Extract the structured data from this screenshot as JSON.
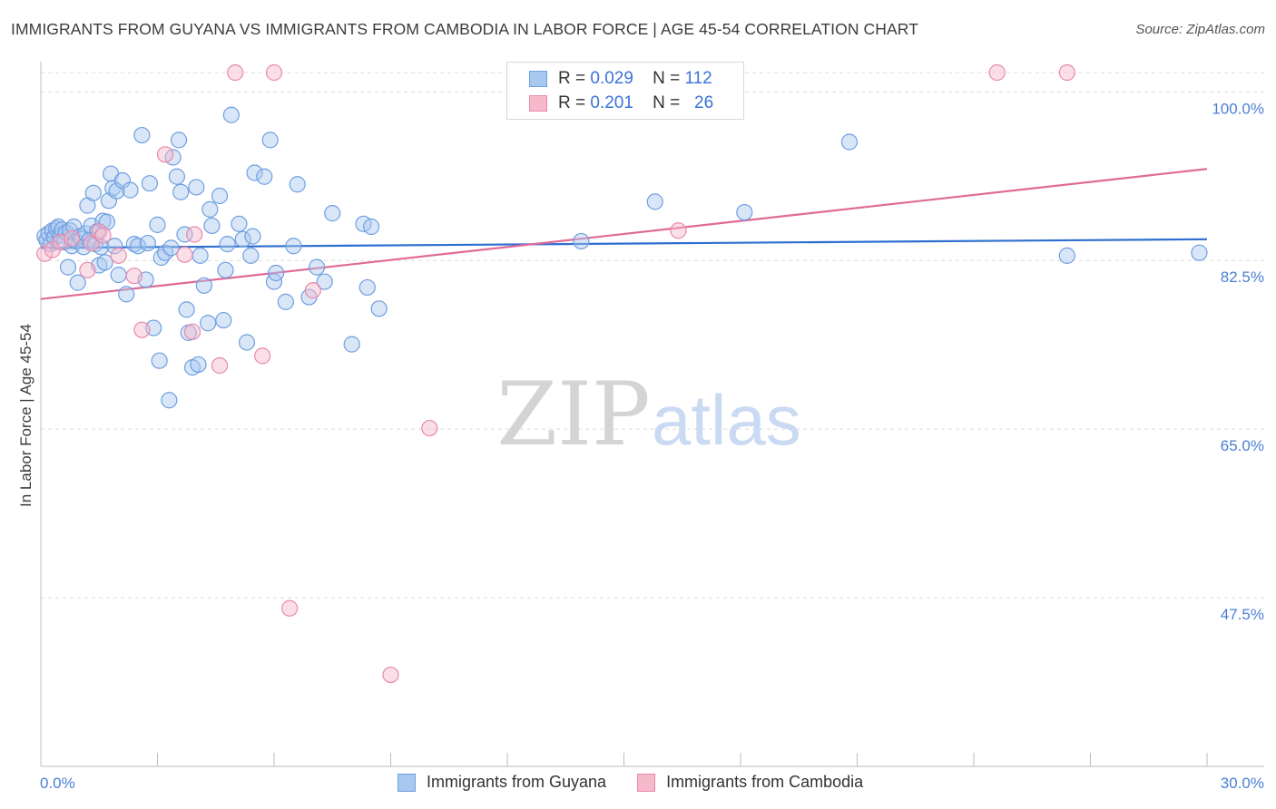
{
  "title": "IMMIGRANTS FROM GUYANA VS IMMIGRANTS FROM CAMBODIA IN LABOR FORCE | AGE 45-54 CORRELATION CHART",
  "source": "Source: ZipAtlas.com",
  "watermark": {
    "zip": "ZIP",
    "atlas": "atlas"
  },
  "legend": {
    "r_label": "R =",
    "n_label": "N =",
    "rows": [
      {
        "r": "0.029",
        "n": "112",
        "color": "#a9c8f0",
        "border": "#6f9fe0"
      },
      {
        "r": "0.201",
        "n": "26",
        "color": "#f6b9cc",
        "border": "#e889a8"
      }
    ]
  },
  "chart_data": {
    "type": "scatter",
    "title": "IMMIGRANTS FROM GUYANA VS IMMIGRANTS FROM CAMBODIA IN LABOR FORCE | AGE 45-54 CORRELATION CHART",
    "xlabel": "",
    "ylabel": "In Labor Force | Age 45-54",
    "xlim": [
      0,
      30
    ],
    "ylim": [
      30,
      102
    ],
    "x_tick_labels": [
      "0.0%",
      "30.0%"
    ],
    "y_ticks": [
      47.5,
      65.0,
      82.5,
      100.0
    ],
    "y_tick_labels": [
      "47.5%",
      "65.0%",
      "82.5%",
      "100.0%"
    ],
    "grid": "horizontal dashed",
    "series": [
      {
        "name": "Immigrants from Guyana",
        "color": "#6f9fe0",
        "fill": "#a9c8f0",
        "trend": {
          "x": [
            0,
            30
          ],
          "y": [
            83.8,
            84.7
          ]
        },
        "points": [
          [
            0.1,
            85.0
          ],
          [
            0.15,
            84.6
          ],
          [
            0.2,
            85.3
          ],
          [
            0.25,
            84.2
          ],
          [
            0.3,
            85.6
          ],
          [
            0.35,
            84.9
          ],
          [
            0.4,
            85.8
          ],
          [
            0.45,
            86.0
          ],
          [
            0.5,
            85.1
          ],
          [
            0.55,
            85.7
          ],
          [
            0.6,
            84.4
          ],
          [
            0.65,
            85.4
          ],
          [
            0.7,
            81.8
          ],
          [
            0.75,
            85.6
          ],
          [
            0.8,
            84.0
          ],
          [
            0.85,
            86.0
          ],
          [
            0.9,
            84.5
          ],
          [
            0.95,
            80.2
          ],
          [
            1.0,
            85.0
          ],
          [
            1.05,
            84.7
          ],
          [
            1.1,
            83.9
          ],
          [
            1.15,
            85.3
          ],
          [
            1.2,
            88.2
          ],
          [
            1.25,
            84.6
          ],
          [
            1.3,
            86.1
          ],
          [
            1.35,
            89.5
          ],
          [
            1.4,
            84.2
          ],
          [
            1.45,
            85.5
          ],
          [
            1.5,
            82.0
          ],
          [
            1.55,
            83.9
          ],
          [
            1.6,
            86.6
          ],
          [
            1.65,
            82.3
          ],
          [
            1.7,
            86.5
          ],
          [
            1.75,
            88.7
          ],
          [
            1.8,
            91.5
          ],
          [
            1.85,
            90.0
          ],
          [
            1.9,
            84.0
          ],
          [
            1.95,
            89.7
          ],
          [
            2.0,
            81.0
          ],
          [
            2.1,
            90.8
          ],
          [
            2.2,
            79.0
          ],
          [
            2.3,
            89.8
          ],
          [
            2.4,
            84.2
          ],
          [
            2.5,
            84.0
          ],
          [
            2.6,
            95.5
          ],
          [
            2.7,
            80.5
          ],
          [
            2.75,
            84.3
          ],
          [
            2.8,
            90.5
          ],
          [
            2.9,
            75.5
          ],
          [
            3.0,
            86.2
          ],
          [
            3.05,
            72.1
          ],
          [
            3.1,
            82.8
          ],
          [
            3.2,
            83.3
          ],
          [
            3.3,
            68.0
          ],
          [
            3.35,
            83.8
          ],
          [
            3.4,
            93.2
          ],
          [
            3.5,
            91.2
          ],
          [
            3.55,
            95.0
          ],
          [
            3.6,
            89.6
          ],
          [
            3.7,
            85.2
          ],
          [
            3.75,
            77.4
          ],
          [
            3.8,
            75.0
          ],
          [
            3.9,
            71.4
          ],
          [
            4.0,
            90.1
          ],
          [
            4.05,
            71.7
          ],
          [
            4.1,
            83.0
          ],
          [
            4.2,
            79.9
          ],
          [
            4.3,
            76.0
          ],
          [
            4.35,
            87.8
          ],
          [
            4.4,
            86.1
          ],
          [
            4.6,
            89.2
          ],
          [
            4.7,
            76.3
          ],
          [
            4.75,
            81.5
          ],
          [
            4.8,
            84.2
          ],
          [
            4.9,
            97.6
          ],
          [
            5.1,
            86.3
          ],
          [
            5.2,
            84.7
          ],
          [
            5.3,
            74.0
          ],
          [
            5.4,
            83.0
          ],
          [
            5.45,
            85.0
          ],
          [
            5.5,
            91.6
          ],
          [
            5.75,
            91.2
          ],
          [
            5.9,
            95.0
          ],
          [
            6.0,
            80.3
          ],
          [
            6.05,
            81.2
          ],
          [
            6.3,
            78.2
          ],
          [
            6.5,
            84.0
          ],
          [
            6.6,
            90.4
          ],
          [
            6.9,
            78.7
          ],
          [
            7.1,
            81.8
          ],
          [
            7.3,
            80.3
          ],
          [
            7.5,
            87.4
          ],
          [
            8.0,
            73.8
          ],
          [
            8.3,
            86.3
          ],
          [
            8.4,
            79.7
          ],
          [
            8.5,
            86.0
          ],
          [
            8.7,
            77.5
          ],
          [
            13.9,
            84.5
          ],
          [
            15.8,
            88.6
          ],
          [
            18.1,
            87.5
          ],
          [
            20.8,
            94.8
          ],
          [
            26.4,
            83.0
          ],
          [
            29.8,
            83.3
          ]
        ]
      },
      {
        "name": "Immigrants from Cambodia",
        "color": "#e889a8",
        "fill": "#f6b9cc",
        "trend": {
          "x": [
            0,
            30
          ],
          "y": [
            78.5,
            92.0
          ]
        },
        "points": [
          [
            0.1,
            83.2
          ],
          [
            0.3,
            83.6
          ],
          [
            0.5,
            84.4
          ],
          [
            0.8,
            84.8
          ],
          [
            1.2,
            81.5
          ],
          [
            1.3,
            84.3
          ],
          [
            1.5,
            85.5
          ],
          [
            1.6,
            85.1
          ],
          [
            2.0,
            83.0
          ],
          [
            2.4,
            80.9
          ],
          [
            2.6,
            75.3
          ],
          [
            3.2,
            93.5
          ],
          [
            3.7,
            83.1
          ],
          [
            3.9,
            75.1
          ],
          [
            3.95,
            85.2
          ],
          [
            4.6,
            71.6
          ],
          [
            5.0,
            102.0
          ],
          [
            5.7,
            72.6
          ],
          [
            6.0,
            102.0
          ],
          [
            6.4,
            46.4
          ],
          [
            7.0,
            79.4
          ],
          [
            9.0,
            39.5
          ],
          [
            10.0,
            65.1
          ],
          [
            16.4,
            85.6
          ],
          [
            24.6,
            102.0
          ],
          [
            26.4,
            102.0
          ]
        ]
      }
    ]
  }
}
